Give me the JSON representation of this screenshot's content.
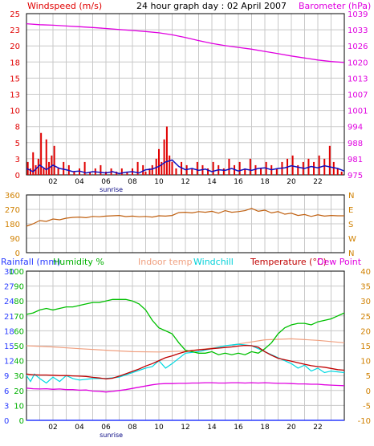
{
  "header": {
    "left_title": "Windspeed (m/s)",
    "center_title": "24 hour graph day : 02 April 2007",
    "right_title": "Barometer (hPa)"
  },
  "colors": {
    "background": "#ffffff",
    "grid": "#c8c8c8",
    "frame": "#000000",
    "wind_bar": "#e00000",
    "wind_line": "#1010c0",
    "barometer": "#e000e0",
    "direction": "#c06010",
    "rainfall": "#2a3cff",
    "humidity": "#00c000",
    "indoor_temp": "#f0a080",
    "windchill": "#00d8e0",
    "temperature": "#c00000",
    "dew_point": "#e000e0",
    "left_axis_red": "#e00000",
    "right_axis_mag": "#e000e0",
    "left_axis_green": "#00b000",
    "right_axis_orange": "#d08000"
  },
  "x_ticks": [
    "02",
    "04",
    "06",
    "08",
    "10",
    "12",
    "14",
    "16",
    "18",
    "20",
    "22"
  ],
  "sunrise_label": "sunrise",
  "chart_data": [
    {
      "id": "wind-baro",
      "type": "bar",
      "title": "24 hour graph day : 02 April 2007",
      "x_range_hours": [
        0,
        24
      ],
      "left_axis": {
        "label": "Windspeed (m/s)",
        "ticks": [
          "0",
          "3",
          "5",
          "8",
          "10",
          "13",
          "15",
          "18",
          "20",
          "23",
          "25"
        ],
        "range": [
          0,
          25
        ]
      },
      "right_axis": {
        "label": "Barometer (hPa)",
        "ticks": [
          "975",
          "981",
          "988",
          "994",
          "1001",
          "1007",
          "1013",
          "1020",
          "1026",
          "1033",
          "1039"
        ],
        "range": [
          975,
          1039
        ]
      },
      "series": [
        {
          "name": "Windspeed (m/s)",
          "kind": "gust_bars",
          "x": [
            0.1,
            0.3,
            0.5,
            0.7,
            0.9,
            1.1,
            1.3,
            1.5,
            1.7,
            1.9,
            2.1,
            2.4,
            2.8,
            3.2,
            3.6,
            4.0,
            4.4,
            4.8,
            5.2,
            5.6,
            6.0,
            6.4,
            6.8,
            7.2,
            7.6,
            8.0,
            8.4,
            8.8,
            9.0,
            9.3,
            9.5,
            9.8,
            10.0,
            10.2,
            10.4,
            10.6,
            10.8,
            11.0,
            11.3,
            11.7,
            12.1,
            12.5,
            12.9,
            13.3,
            13.7,
            14.1,
            14.5,
            14.9,
            15.3,
            15.7,
            16.1,
            16.5,
            16.9,
            17.3,
            17.7,
            18.1,
            18.5,
            18.9,
            19.3,
            19.7,
            20.1,
            20.5,
            20.9,
            21.3,
            21.7,
            22.1,
            22.5,
            22.9,
            23.2,
            23.5,
            23.8
          ],
          "values": [
            2.0,
            1.0,
            3.5,
            1.5,
            2.5,
            6.5,
            1.0,
            5.5,
            2.0,
            3.0,
            4.5,
            1.0,
            2.0,
            1.5,
            0.5,
            1.0,
            2.0,
            0.5,
            1.0,
            1.5,
            0.5,
            1.0,
            0.5,
            1.0,
            0.5,
            1.0,
            2.0,
            1.5,
            0.5,
            1.0,
            1.5,
            2.5,
            4.0,
            2.0,
            5.5,
            7.5,
            3.0,
            2.0,
            1.0,
            2.0,
            1.5,
            1.0,
            2.0,
            1.5,
            1.0,
            2.0,
            1.5,
            1.0,
            2.5,
            1.5,
            2.0,
            1.0,
            2.5,
            1.5,
            1.0,
            2.0,
            1.5,
            1.0,
            2.0,
            2.5,
            3.0,
            1.5,
            2.0,
            2.5,
            2.0,
            3.0,
            2.5,
            4.5,
            2.0,
            1.0,
            0.5
          ]
        },
        {
          "name": "Average windspeed",
          "kind": "line",
          "x": [
            0,
            0.5,
            1,
            1.5,
            2,
            2.5,
            3,
            3.5,
            4,
            4.5,
            5,
            5.5,
            6,
            6.5,
            7,
            7.5,
            8,
            8.5,
            9,
            9.5,
            10,
            10.5,
            11,
            11.5,
            12,
            12.5,
            13,
            13.5,
            14,
            14.5,
            15,
            15.5,
            16,
            16.5,
            17,
            17.5,
            18,
            18.5,
            19,
            19.5,
            20,
            20.5,
            21,
            21.5,
            22,
            22.5,
            23,
            23.5,
            24
          ],
          "values": [
            1.0,
            0.5,
            1.5,
            0.8,
            1.5,
            1.0,
            0.8,
            0.5,
            0.6,
            0.3,
            0.5,
            0.4,
            0.3,
            0.5,
            0.2,
            0.4,
            0.5,
            0.3,
            0.8,
            0.9,
            1.3,
            2.0,
            2.3,
            1.3,
            0.8,
            1.0,
            0.7,
            0.9,
            0.5,
            0.8,
            0.7,
            1.0,
            0.6,
            0.9,
            0.7,
            1.0,
            1.1,
            0.8,
            1.0,
            1.1,
            1.4,
            1.2,
            1.0,
            1.3,
            1.1,
            1.4,
            1.2,
            1.0,
            0.6
          ]
        },
        {
          "name": "Barometer (hPa)",
          "kind": "line",
          "x": [
            0,
            1,
            2,
            3,
            4,
            5,
            6,
            7,
            8,
            9,
            10,
            11,
            12,
            13,
            14,
            15,
            16,
            17,
            18,
            19,
            20,
            21,
            22,
            23,
            24
          ],
          "values": [
            1035.0,
            1034.6,
            1034.4,
            1034.1,
            1033.8,
            1033.5,
            1033.1,
            1032.7,
            1032.3,
            1031.9,
            1031.4,
            1030.6,
            1029.5,
            1028.3,
            1027.2,
            1026.3,
            1025.6,
            1024.9,
            1024.0,
            1023.1,
            1022.2,
            1021.4,
            1020.6,
            1020.0,
            1019.6
          ]
        }
      ]
    },
    {
      "id": "direction",
      "type": "line",
      "x_range_hours": [
        0,
        24
      ],
      "left_axis": {
        "label": "",
        "ticks": [
          "0",
          "90",
          "180",
          "270",
          "360"
        ],
        "range": [
          0,
          360
        ]
      },
      "right_axis": {
        "label": "",
        "ticks": [
          "N",
          "E",
          "S",
          "W",
          "N"
        ]
      },
      "series": [
        {
          "name": "Wind direction",
          "x": [
            0,
            0.5,
            1,
            1.5,
            2,
            2.5,
            3,
            3.5,
            4,
            4.5,
            5,
            5.5,
            6,
            6.5,
            7,
            7.5,
            8,
            8.5,
            9,
            9.5,
            10,
            10.5,
            11,
            11.5,
            12,
            12.5,
            13,
            13.5,
            14,
            14.5,
            15,
            15.5,
            16,
            16.5,
            17,
            17.5,
            18,
            18.5,
            19,
            19.5,
            20,
            20.5,
            21,
            21.5,
            22,
            22.5,
            23,
            23.5,
            24
          ],
          "values": [
            165,
            180,
            200,
            195,
            210,
            205,
            215,
            220,
            222,
            218,
            226,
            224,
            228,
            230,
            232,
            225,
            228,
            224,
            226,
            222,
            230,
            228,
            232,
            250,
            252,
            248,
            256,
            252,
            258,
            246,
            262,
            252,
            256,
            262,
            276,
            258,
            265,
            248,
            256,
            240,
            246,
            232,
            238,
            226,
            236,
            228,
            232,
            230,
            230
          ]
        }
      ]
    },
    {
      "id": "temp-humidity",
      "type": "line",
      "x_range_hours": [
        0,
        24
      ],
      "left_axis_rain": {
        "label": "Rainfall (mm)",
        "ticks": [
          "0",
          "3",
          "6",
          "9",
          "12",
          "15",
          "18",
          "21",
          "24",
          "27",
          "30"
        ],
        "range": [
          0,
          30
        ]
      },
      "left_axis_humidity": {
        "label": "Humidity %",
        "ticks": [
          "0",
          "10",
          "20",
          "30",
          "40",
          "50",
          "60",
          "70",
          "80",
          "90",
          "100"
        ],
        "range": [
          0,
          100
        ]
      },
      "right_axis_temp": {
        "label": "Temperature (°C)",
        "ticks": [
          "-10",
          "-5",
          "0",
          "5",
          "10",
          "15",
          "20",
          "25",
          "30",
          "35",
          "40"
        ],
        "range": [
          -10,
          40
        ]
      },
      "legend": [
        "Rainfall (mm)",
        "Humidity %",
        "Indoor temp",
        "Windchill",
        "Temperature (°C)",
        "Dew Point"
      ],
      "series": [
        {
          "name": "Humidity %",
          "axis": "humidity",
          "x": [
            0,
            0.5,
            1,
            1.5,
            2,
            2.5,
            3,
            3.5,
            4,
            4.5,
            5,
            5.5,
            6,
            6.5,
            7,
            7.5,
            8,
            8.5,
            9,
            9.5,
            10,
            10.5,
            11,
            11.5,
            12,
            12.5,
            13,
            13.5,
            14,
            14.5,
            15,
            15.5,
            16,
            16.5,
            17,
            17.5,
            18,
            18.5,
            19,
            19.5,
            20,
            20.5,
            21,
            21.5,
            22,
            22.5,
            23,
            23.5,
            24
          ],
          "values": [
            71,
            72,
            74,
            75,
            74,
            75,
            76,
            76,
            77,
            78,
            79,
            79,
            80,
            81,
            81,
            81,
            80,
            78,
            74,
            67,
            62,
            60,
            58,
            52,
            47,
            46,
            45,
            45,
            46,
            44,
            45,
            44,
            45,
            44,
            46,
            45,
            48,
            52,
            58,
            62,
            64,
            65,
            65,
            64,
            66,
            67,
            68,
            70,
            72
          ]
        },
        {
          "name": "Indoor temp",
          "axis": "temp",
          "x": [
            0,
            2,
            4,
            6,
            8,
            10,
            12,
            14,
            16,
            18,
            20,
            22,
            24
          ],
          "values": [
            15.0,
            14.6,
            14.0,
            13.5,
            13.0,
            12.9,
            13.2,
            14.2,
            15.6,
            17.0,
            17.3,
            16.8,
            16.0
          ]
        },
        {
          "name": "Windchill",
          "axis": "temp",
          "x": [
            0,
            0.3,
            0.6,
            1,
            1.5,
            2,
            2.5,
            3,
            3.5,
            4,
            5,
            6,
            7,
            8,
            9,
            9.5,
            10,
            10.5,
            11,
            12,
            13,
            14,
            15,
            16,
            17,
            18,
            19,
            20,
            20.5,
            21,
            21.5,
            22,
            22.5,
            23,
            24
          ],
          "values": [
            5.0,
            3.0,
            5.5,
            4.0,
            2.5,
            4.5,
            3.0,
            5.0,
            4.0,
            3.5,
            4.0,
            4.0,
            4.5,
            6.0,
            7.5,
            8.0,
            10.0,
            7.5,
            9.0,
            12.5,
            13.0,
            14.0,
            15.0,
            15.5,
            15.0,
            13.0,
            11.0,
            9.0,
            7.5,
            8.5,
            6.5,
            7.5,
            6.0,
            6.5,
            6.0
          ]
        },
        {
          "name": "Temperature (°C)",
          "axis": "temp",
          "x": [
            0,
            0.5,
            1,
            1.5,
            2,
            2.5,
            3,
            3.5,
            4,
            4.5,
            5,
            5.5,
            6,
            6.5,
            7,
            7.5,
            8,
            8.5,
            9,
            9.5,
            10,
            10.5,
            11,
            11.5,
            12,
            12.5,
            13,
            13.5,
            14,
            14.5,
            15,
            15.5,
            16,
            16.5,
            17,
            17.5,
            18,
            18.5,
            19,
            19.5,
            20,
            20.5,
            21,
            21.5,
            22,
            22.5,
            23,
            23.5,
            24
          ],
          "values": [
            5.5,
            5.3,
            5.2,
            5.2,
            5.1,
            5.0,
            5.0,
            4.9,
            4.8,
            4.7,
            4.4,
            4.2,
            3.9,
            4.1,
            4.8,
            5.6,
            6.4,
            7.2,
            8.2,
            9.0,
            10.0,
            11.0,
            11.6,
            12.4,
            13.0,
            13.4,
            13.6,
            13.8,
            14.0,
            14.2,
            14.4,
            14.6,
            14.9,
            15.1,
            15.0,
            14.5,
            13.0,
            11.8,
            10.8,
            10.3,
            9.8,
            9.3,
            8.8,
            8.3,
            8.0,
            7.8,
            7.4,
            7.0,
            6.8
          ]
        },
        {
          "name": "Dew Point",
          "axis": "temp",
          "x": [
            0,
            0.5,
            1,
            1.5,
            2,
            2.5,
            3,
            3.5,
            4,
            4.5,
            5,
            5.5,
            6,
            6.5,
            7,
            7.5,
            8,
            8.5,
            9,
            9.5,
            10,
            10.5,
            11,
            11.5,
            12,
            12.5,
            13,
            13.5,
            14,
            14.5,
            15,
            15.5,
            16,
            16.5,
            17,
            17.5,
            18,
            18.5,
            19,
            19.5,
            20,
            20.5,
            21,
            21.5,
            22,
            22.5,
            23,
            23.5,
            24
          ],
          "values": [
            0.8,
            0.6,
            0.5,
            0.6,
            0.4,
            0.5,
            0.3,
            0.3,
            0.1,
            0.2,
            -0.2,
            -0.3,
            -0.5,
            -0.3,
            0.0,
            0.3,
            0.7,
            1.1,
            1.5,
            1.9,
            2.2,
            2.3,
            2.3,
            2.4,
            2.4,
            2.5,
            2.5,
            2.6,
            2.6,
            2.5,
            2.5,
            2.6,
            2.6,
            2.5,
            2.6,
            2.5,
            2.6,
            2.5,
            2.4,
            2.4,
            2.3,
            2.2,
            2.2,
            2.1,
            2.1,
            1.9,
            1.8,
            1.7,
            1.6
          ]
        },
        {
          "name": "Rainfall (mm)",
          "axis": "rain",
          "x": [
            0,
            24
          ],
          "values": [
            0,
            0
          ]
        }
      ]
    }
  ]
}
